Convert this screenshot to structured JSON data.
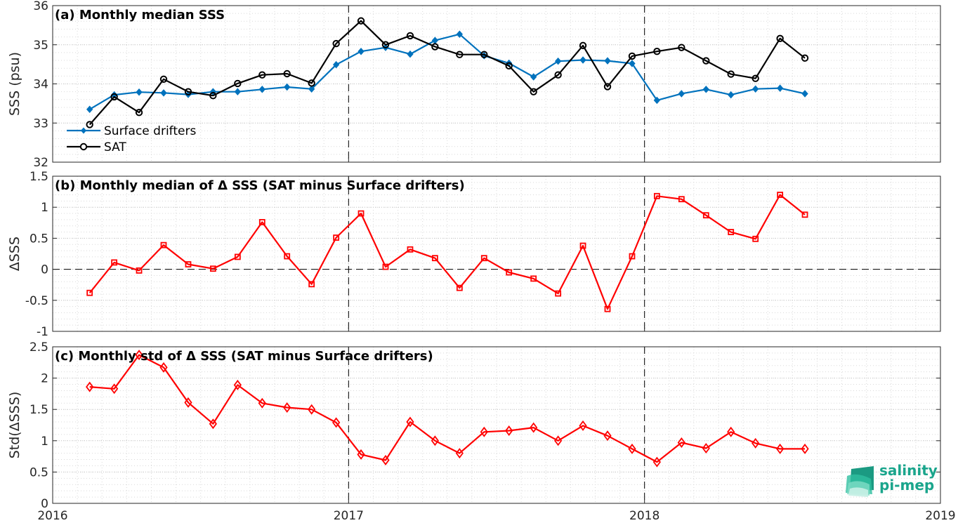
{
  "chart_data": [
    {
      "type": "line",
      "panel": "a",
      "title": "(a) Monthly median SSS",
      "xlabel": "",
      "ylabel": "SSS (psu)",
      "xlim": [
        2016,
        2019
      ],
      "ylim": [
        32,
        36
      ],
      "yticks": [
        32,
        33,
        34,
        35,
        36
      ],
      "grid": true,
      "legend_position": "bottom-left",
      "x": [
        2016.125,
        2016.208,
        2016.292,
        2016.375,
        2016.458,
        2016.542,
        2016.625,
        2016.708,
        2016.792,
        2016.875,
        2016.958,
        2017.042,
        2017.125,
        2017.208,
        2017.292,
        2017.375,
        2017.458,
        2017.542,
        2017.625,
        2017.708,
        2017.792,
        2017.875,
        2017.958,
        2018.042,
        2018.125,
        2018.208,
        2018.292,
        2018.375,
        2018.458,
        2018.542
      ],
      "series": [
        {
          "name": "Surface drifters",
          "color": "#0072bd",
          "marker": "filled-diamond",
          "values": [
            33.35,
            33.72,
            33.79,
            33.77,
            33.73,
            33.8,
            33.8,
            33.86,
            33.92,
            33.87,
            34.49,
            34.83,
            34.93,
            34.76,
            35.11,
            35.27,
            34.72,
            34.53,
            34.18,
            34.58,
            34.61,
            34.59,
            34.52,
            33.58,
            33.75,
            33.86,
            33.72,
            33.87,
            33.89,
            33.75
          ]
        },
        {
          "name": "SAT",
          "color": "#000000",
          "marker": "open-circle",
          "values": [
            32.96,
            33.67,
            33.27,
            34.12,
            33.8,
            33.7,
            34.01,
            34.23,
            34.26,
            34.02,
            35.03,
            35.61,
            35.0,
            35.23,
            34.95,
            34.75,
            34.75,
            34.46,
            33.8,
            34.23,
            34.98,
            33.93,
            34.71,
            34.83,
            34.93,
            34.59,
            34.25,
            34.14,
            35.16,
            34.66
          ]
        }
      ]
    },
    {
      "type": "line",
      "panel": "b",
      "title": "(b) Monthly median of Δ SSS (SAT minus Surface drifters)",
      "xlabel": "",
      "ylabel": "ΔSSS",
      "xlim": [
        2016,
        2019
      ],
      "ylim": [
        -1,
        1.5
      ],
      "yticks": [
        -1,
        -0.5,
        0,
        0.5,
        1,
        1.5
      ],
      "grid": true,
      "x": [
        2016.125,
        2016.208,
        2016.292,
        2016.375,
        2016.458,
        2016.542,
        2016.625,
        2016.708,
        2016.792,
        2016.875,
        2016.958,
        2017.042,
        2017.125,
        2017.208,
        2017.292,
        2017.375,
        2017.458,
        2017.542,
        2017.625,
        2017.708,
        2017.792,
        2017.875,
        2017.958,
        2018.042,
        2018.125,
        2018.208,
        2018.292,
        2018.375,
        2018.458,
        2018.542
      ],
      "series": [
        {
          "color": "#ff0000",
          "marker": "open-square",
          "values": [
            -0.38,
            0.11,
            -0.02,
            0.39,
            0.08,
            0.01,
            0.2,
            0.76,
            0.21,
            -0.24,
            0.51,
            0.9,
            0.04,
            0.32,
            0.18,
            -0.3,
            0.18,
            -0.05,
            -0.15,
            -0.39,
            0.38,
            -0.64,
            0.21,
            1.18,
            1.13,
            0.87,
            0.6,
            0.49,
            1.2,
            0.88
          ]
        }
      ]
    },
    {
      "type": "line",
      "panel": "c",
      "title": "(c) Monthly std of Δ SSS (SAT minus Surface drifters)",
      "xlabel": "",
      "ylabel": "Std(ΔSSS)",
      "xlim": [
        2016,
        2019
      ],
      "ylim": [
        0,
        2.5
      ],
      "yticks": [
        0,
        0.5,
        1,
        1.5,
        2,
        2.5
      ],
      "xticks": [
        2016,
        2017,
        2018,
        2019
      ],
      "grid": true,
      "x": [
        2016.125,
        2016.208,
        2016.292,
        2016.375,
        2016.458,
        2016.542,
        2016.625,
        2016.708,
        2016.792,
        2016.875,
        2016.958,
        2017.042,
        2017.125,
        2017.208,
        2017.292,
        2017.375,
        2017.458,
        2017.542,
        2017.625,
        2017.708,
        2017.792,
        2017.875,
        2017.958,
        2018.042,
        2018.125,
        2018.208,
        2018.292,
        2018.375,
        2018.458,
        2018.542
      ],
      "series": [
        {
          "color": "#ff0000",
          "marker": "open-diamond",
          "values": [
            1.86,
            1.83,
            2.37,
            2.17,
            1.61,
            1.27,
            1.89,
            1.6,
            1.53,
            1.5,
            1.29,
            0.78,
            0.69,
            1.3,
            1.0,
            0.8,
            1.14,
            1.16,
            1.21,
            1.0,
            1.24,
            1.08,
            0.87,
            0.66,
            0.97,
            0.88,
            1.14,
            0.96,
            0.87,
            0.87
          ]
        }
      ]
    }
  ],
  "logo": {
    "line1": "salinity",
    "line2": "pi-mep",
    "color": "#1aa58c"
  }
}
